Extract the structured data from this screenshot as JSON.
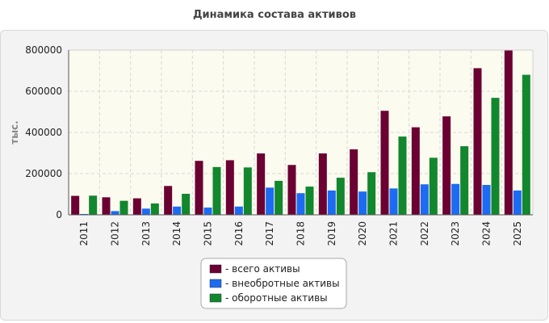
{
  "title": "Динамика состава активов",
  "chart_data": {
    "type": "bar",
    "title": "Динамика состава активов",
    "ylabel": "тыс.",
    "xlabel": "",
    "ylim": [
      0,
      800000
    ],
    "yticks": [
      0,
      200000,
      400000,
      600000,
      800000
    ],
    "grid": true,
    "legend_position": "bottom",
    "categories": [
      "2011",
      "2012",
      "2013",
      "2014",
      "2015",
      "2016",
      "2017",
      "2018",
      "2019",
      "2020",
      "2021",
      "2022",
      "2023",
      "2024",
      "2025"
    ],
    "series": [
      {
        "name": "- всего активы",
        "color": "#6b0032",
        "values": [
          92000,
          85000,
          80000,
          140000,
          262000,
          265000,
          298000,
          242000,
          298000,
          318000,
          505000,
          425000,
          478000,
          712000,
          798000
        ]
      },
      {
        "name": "- внеобротные активы",
        "color": "#1c6bf2",
        "values": [
          4000,
          18000,
          30000,
          40000,
          35000,
          40000,
          132000,
          105000,
          118000,
          113000,
          128000,
          148000,
          150000,
          145000,
          118000
        ]
      },
      {
        "name": "- оборотные активы",
        "color": "#12872e",
        "values": [
          93000,
          68000,
          55000,
          102000,
          232000,
          230000,
          165000,
          137000,
          180000,
          207000,
          380000,
          277000,
          333000,
          568000,
          680000
        ]
      }
    ]
  }
}
